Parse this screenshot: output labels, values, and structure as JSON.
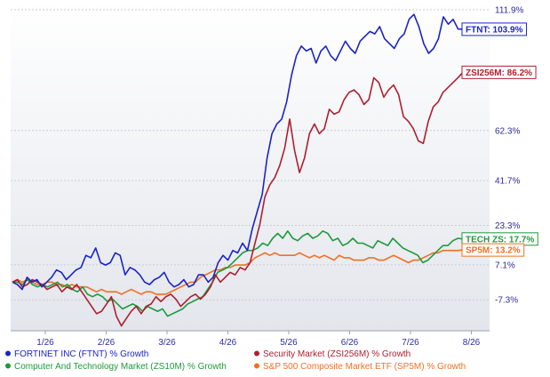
{
  "chart_data": {
    "type": "line",
    "title": "",
    "xlabel": "",
    "ylabel": "",
    "ylim": [
      -20,
      113
    ],
    "y_scale": "linear",
    "y_tick_labels": [
      "111.9%",
      "62.3%",
      "41.7%",
      "23.3%",
      "7.1%",
      "-7.3%"
    ],
    "y_tick_values": [
      111.9,
      62.3,
      41.7,
      23.3,
      7.1,
      -7.3
    ],
    "x_tick_labels": [
      "1/26",
      "2/26",
      "3/26",
      "4/26",
      "5/26",
      "6/26",
      "7/26",
      "8/26"
    ],
    "grid": "horizontal",
    "legend_placement": "bottom",
    "series": [
      {
        "name": "FORTINET INC (FTNT) % Growth",
        "flag": "FTNT: 103.9%",
        "color": "#1b24c7",
        "values": [
          0,
          -1,
          -3,
          2,
          0,
          1,
          -2,
          0,
          2,
          5,
          4,
          1,
          3,
          5,
          6,
          11,
          10,
          14,
          8,
          7,
          8,
          12,
          11,
          3,
          6,
          5,
          3,
          0,
          -1,
          1,
          2,
          4,
          0,
          -2,
          -1,
          1,
          -2,
          -1,
          3,
          3,
          0,
          2,
          8,
          11,
          9,
          13,
          12,
          16,
          13,
          22,
          29,
          36,
          51,
          61,
          65,
          67,
          74,
          85,
          93,
          97,
          95,
          96,
          90,
          95,
          97,
          93,
          91,
          95,
          99,
          96,
          94,
          99,
          101,
          103,
          102,
          105,
          100,
          98,
          96,
          100,
          102,
          108,
          110,
          105,
          98,
          94,
          96,
          100,
          109,
          106,
          108,
          104,
          103.9
        ]
      },
      {
        "name": "Security Market (ZSI256M) % Growth",
        "flag": "ZSI256M: 86.2%",
        "color": "#ad1f2f",
        "values": [
          0,
          1,
          -2,
          -1,
          1,
          0,
          -1,
          -3,
          -2,
          -1,
          -4,
          -2,
          -3,
          -1,
          -4,
          -7,
          -10,
          -13,
          -12,
          -9,
          -6,
          -14,
          -18,
          -15,
          -12,
          -10,
          -13,
          -10,
          -9,
          -6,
          -8,
          -6,
          -5,
          -7,
          -10,
          -8,
          -6,
          -5,
          -7,
          -5,
          -2,
          3,
          0,
          2,
          4,
          3,
          6,
          5,
          8,
          16,
          24,
          35,
          40,
          43,
          48,
          55,
          67,
          54,
          45,
          51,
          61,
          65,
          61,
          63,
          71,
          69,
          70,
          75,
          78,
          79,
          77,
          73,
          75,
          84,
          82,
          76,
          79,
          81,
          77,
          68,
          66,
          63,
          58,
          57,
          66,
          72,
          74,
          78,
          80,
          82,
          84,
          86.2
        ]
      },
      {
        "name": "Computer And Technology Market (ZS10M) % Growth",
        "flag": "TECH ZS: 17.7%",
        "color": "#1e9a3d",
        "values": [
          0,
          0,
          -1,
          1,
          -1,
          -2,
          -1,
          -2,
          -1,
          0,
          -2,
          -1,
          -3,
          -4,
          -2,
          -5,
          -6,
          -5,
          -6,
          -8,
          -7,
          -9,
          -11,
          -10,
          -9,
          -10,
          -12,
          -10,
          -11,
          -12,
          -11,
          -14,
          -13,
          -12,
          -11,
          -9,
          -8,
          -7,
          -6,
          -3,
          0,
          4,
          5,
          6,
          8,
          10,
          12,
          13,
          13,
          14,
          16,
          15,
          18,
          20,
          18,
          21,
          18,
          17,
          19,
          20,
          18,
          19,
          21,
          20,
          17,
          18,
          15,
          16,
          18,
          16,
          16,
          15,
          14,
          17,
          16,
          15,
          18,
          16,
          14,
          13,
          12,
          11,
          8,
          9,
          11,
          13,
          15,
          15,
          17,
          18,
          17.7
        ]
      },
      {
        "name": "S&P 500 Composite Market ETF (SP5M) % Growth",
        "flag": "SP5M: 13.2%",
        "color": "#f07024",
        "values": [
          0,
          1,
          0,
          1,
          0,
          -1,
          -1,
          0,
          0,
          -1,
          -1,
          -2,
          -1,
          -2,
          -2,
          -2,
          -3,
          -4,
          -3,
          -4,
          -4,
          -4,
          -5,
          -4,
          -3,
          -4,
          -5,
          -4,
          -4,
          -5,
          -5,
          -5,
          -4,
          -3,
          -2,
          -1,
          0,
          0,
          2,
          3,
          4,
          5,
          5,
          6,
          6,
          7,
          7,
          7,
          8,
          10,
          11,
          12,
          11,
          12,
          11,
          11,
          11,
          11,
          12,
          11,
          10,
          11,
          10,
          11,
          10,
          9,
          11,
          10,
          10,
          9,
          9,
          9,
          10,
          10,
          9,
          9,
          10,
          11,
          10,
          9,
          8,
          9,
          9,
          10,
          11,
          12,
          12,
          13,
          13,
          13,
          13,
          13.2
        ]
      }
    ]
  }
}
